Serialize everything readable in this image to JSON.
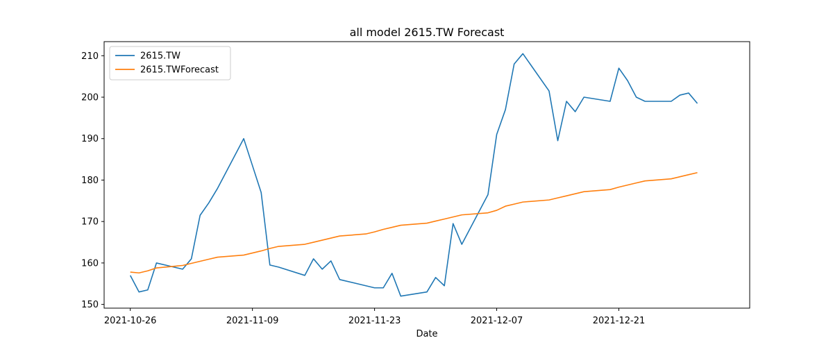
{
  "chart_data": {
    "type": "line",
    "title": "all model 2615.TW Forecast",
    "xlabel": "Date",
    "ylabel": "",
    "ylim": [
      149.1,
      213.4
    ],
    "xlim": [
      "2021-10-23",
      "2022-01-05"
    ],
    "x_ticks": [
      "2021-10-26",
      "2021-11-09",
      "2021-11-23",
      "2021-12-07",
      "2021-12-21"
    ],
    "y_ticks": [
      150,
      160,
      170,
      180,
      190,
      200,
      210
    ],
    "grid": false,
    "legend": "upper-left",
    "x": [
      "2021-10-26",
      "2021-10-27",
      "2021-10-28",
      "2021-10-29",
      "2021-11-01",
      "2021-11-02",
      "2021-11-03",
      "2021-11-04",
      "2021-11-05",
      "2021-11-08",
      "2021-11-09",
      "2021-11-10",
      "2021-11-11",
      "2021-11-12",
      "2021-11-15",
      "2021-11-16",
      "2021-11-17",
      "2021-11-18",
      "2021-11-19",
      "2021-11-22",
      "2021-11-23",
      "2021-11-24",
      "2021-11-25",
      "2021-11-26",
      "2021-11-29",
      "2021-11-30",
      "2021-12-01",
      "2021-12-02",
      "2021-12-03",
      "2021-12-06",
      "2021-12-07",
      "2021-12-08",
      "2021-12-09",
      "2021-12-10",
      "2021-12-13",
      "2021-12-14",
      "2021-12-15",
      "2021-12-16",
      "2021-12-17",
      "2021-12-20",
      "2021-12-21",
      "2021-12-22",
      "2021-12-23",
      "2021-12-24",
      "2021-12-27",
      "2021-12-28",
      "2021-12-29",
      "2021-12-30"
    ],
    "series": [
      {
        "name": "2615.TW",
        "color": "#1f77b4",
        "values": [
          157,
          153,
          153.5,
          160,
          158.5,
          161,
          171.5,
          174.5,
          178,
          190,
          183.5,
          177,
          159.5,
          159,
          157,
          161,
          158.5,
          160.5,
          156,
          154.5,
          154,
          154,
          157.5,
          152,
          153,
          156.5,
          154.5,
          169.5,
          164.5,
          176.5,
          191,
          197,
          208,
          210.5,
          201.5,
          189.5,
          199,
          196.5,
          200,
          199,
          207,
          204,
          200,
          199,
          199,
          200.5,
          201,
          198.5
        ]
      },
      {
        "name": "2615.TWForecast",
        "color": "#ff7f0e",
        "values": [
          157.8,
          157.6,
          158.1,
          158.8,
          159.4,
          159.9,
          160.4,
          160.9,
          161.4,
          161.9,
          162.4,
          162.9,
          163.5,
          164.0,
          164.5,
          165.0,
          165.5,
          166.0,
          166.5,
          167.0,
          167.5,
          168.1,
          168.6,
          169.1,
          169.6,
          170.1,
          170.6,
          171.1,
          171.6,
          172.1,
          172.7,
          173.7,
          174.2,
          174.7,
          175.2,
          175.7,
          176.2,
          176.7,
          177.2,
          177.7,
          178.3,
          178.8,
          179.3,
          179.8,
          180.3,
          180.8,
          181.3,
          181.8
        ]
      }
    ]
  }
}
